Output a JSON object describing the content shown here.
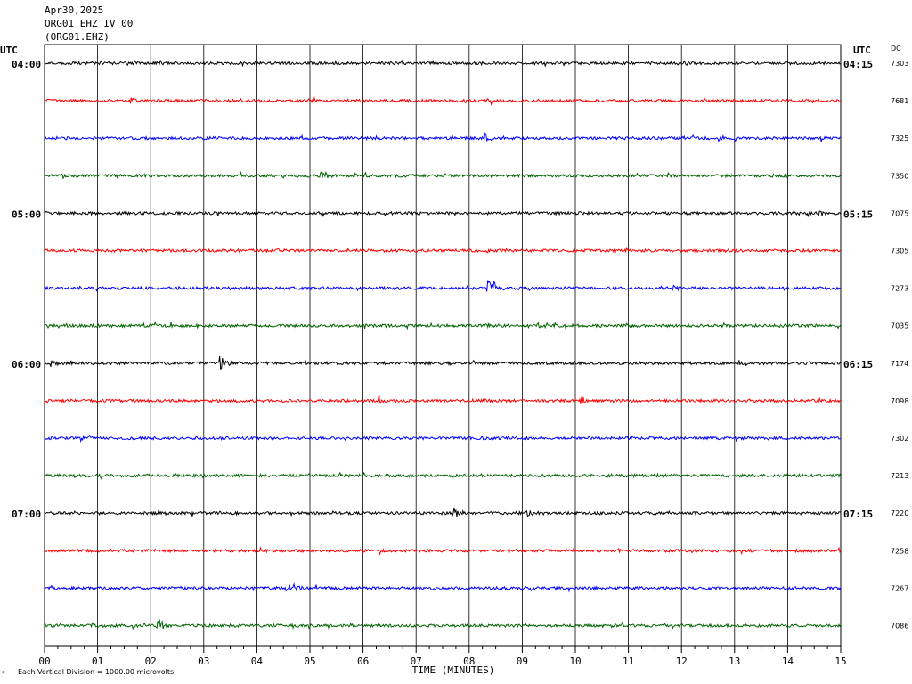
{
  "header": {
    "date": "Apr30,2025",
    "station": "ORG01 EHZ IV 00",
    "channel": "(ORG01.EHZ)"
  },
  "labels": {
    "utc_left": "UTC",
    "utc_right": "UTC",
    "dc_heading": "DC",
    "xlabel": "TIME (MINUTES)",
    "footnote": "Each Vertical Division = 1000.00 microvolts",
    "corner_mark": "*"
  },
  "chart_data": {
    "type": "line",
    "title": "",
    "xlabel": "TIME (MINUTES)",
    "xlim": [
      0,
      15
    ],
    "x_ticks": [
      "00",
      "01",
      "02",
      "03",
      "04",
      "05",
      "06",
      "07",
      "08",
      "09",
      "10",
      "11",
      "12",
      "13",
      "14",
      "15"
    ],
    "hour_labels_left": [
      "04:00",
      "",
      "",
      "",
      "05:00",
      "",
      "",
      "",
      "06:00",
      "",
      "",
      "",
      "07:00",
      "",
      "",
      ""
    ],
    "hour_labels_right": [
      "04:15",
      "",
      "",
      "",
      "05:15",
      "",
      "",
      "",
      "06:15",
      "",
      "",
      "",
      "07:15",
      "",
      "",
      ""
    ],
    "series_colors": [
      "#000000",
      "#ff0000",
      "#0000ff",
      "#006400"
    ],
    "series": [
      {
        "dc": "7303",
        "events": [
          {
            "t": 11.8,
            "amp": 6
          }
        ]
      },
      {
        "dc": "7681",
        "events": [
          {
            "t": 1.6,
            "amp": 4
          }
        ]
      },
      {
        "dc": "7325",
        "events": [
          {
            "t": 8.3,
            "amp": 5
          },
          {
            "t": 12.7,
            "amp": 4
          }
        ]
      },
      {
        "dc": "7350",
        "events": [
          {
            "t": 5.2,
            "amp": 6
          }
        ]
      },
      {
        "dc": "7075",
        "events": [
          {
            "t": 14.6,
            "amp": 4
          }
        ]
      },
      {
        "dc": "7305",
        "events": []
      },
      {
        "dc": "7273",
        "events": [
          {
            "t": 8.35,
            "amp": 16
          },
          {
            "t": 11.8,
            "amp": 5
          }
        ]
      },
      {
        "dc": "7035",
        "events": [
          {
            "t": 9.3,
            "amp": 5
          }
        ]
      },
      {
        "dc": "7174",
        "events": [
          {
            "t": 3.3,
            "amp": 9
          },
          {
            "t": 0.1,
            "amp": 5
          }
        ]
      },
      {
        "dc": "7098",
        "events": [
          {
            "t": 6.3,
            "amp": 6
          },
          {
            "t": 10.1,
            "amp": 6
          }
        ]
      },
      {
        "dc": "7302",
        "events": [
          {
            "t": 0.7,
            "amp": 5
          }
        ]
      },
      {
        "dc": "7213",
        "events": []
      },
      {
        "dc": "7220",
        "events": [
          {
            "t": 7.7,
            "amp": 6
          },
          {
            "t": 9.1,
            "amp": 5
          }
        ]
      },
      {
        "dc": "7258",
        "events": []
      },
      {
        "dc": "7267",
        "events": [
          {
            "t": 4.55,
            "amp": 14
          }
        ]
      },
      {
        "dc": "7086",
        "events": [
          {
            "t": 2.1,
            "amp": 11
          }
        ]
      }
    ]
  }
}
